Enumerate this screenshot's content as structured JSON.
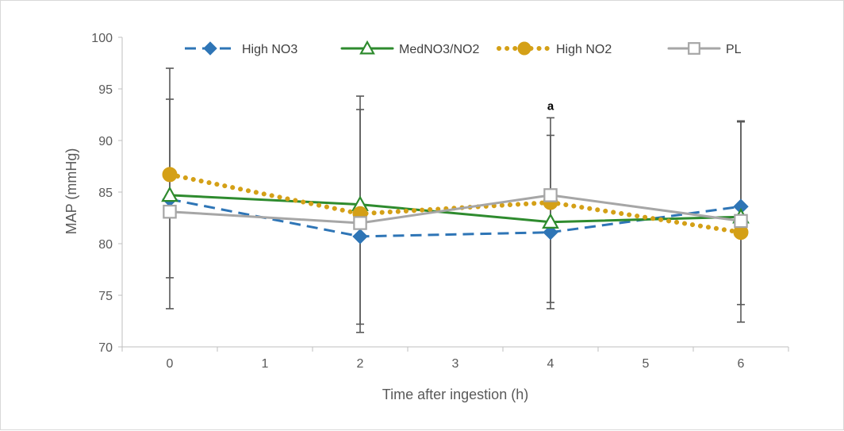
{
  "chart_data": {
    "type": "line",
    "title": "",
    "xlabel": "Time after ingestion (h)",
    "ylabel": "MAP (mmHg)",
    "xlim": [
      -0.5,
      6.5
    ],
    "ylim": [
      70,
      100
    ],
    "x_ticks": [
      "0",
      "1",
      "2",
      "3",
      "4",
      "5",
      "6"
    ],
    "y_ticks": [
      "70",
      "75",
      "80",
      "85",
      "90",
      "95",
      "100"
    ],
    "grid": false,
    "legend_position": "top",
    "series": [
      {
        "name": "High NO3",
        "color": "#2E75B6",
        "marker": "diamond",
        "line_style": "dashed",
        "x": [
          0,
          2,
          4,
          6
        ],
        "y": [
          84.3,
          80.7,
          81.1,
          83.6
        ],
        "error": [
          [
            73.7,
            94.0
          ],
          [
            72.2,
            93.0
          ],
          [
            74.3,
            90.5
          ],
          [
            74.1,
            91.9
          ]
        ]
      },
      {
        "name": "MedNO3/NO2",
        "color": "#2E8B2E",
        "marker": "triangle",
        "line_style": "solid",
        "x": [
          0,
          2,
          4,
          6
        ],
        "y": [
          84.7,
          83.8,
          82.1,
          82.6
        ],
        "error": [
          [
            76.7,
            97.0
          ],
          [
            71.4,
            94.3
          ],
          [
            73.7,
            92.2
          ],
          [
            72.4,
            91.8
          ]
        ]
      },
      {
        "name": "High NO2",
        "color": "#D4A017",
        "marker": "circle",
        "line_style": "dotted",
        "x": [
          0,
          2,
          4,
          6
        ],
        "y": [
          86.7,
          82.9,
          84.0,
          81.1
        ],
        "error": []
      },
      {
        "name": "PL",
        "color": "#A6A6A6",
        "marker": "square",
        "line_style": "solid",
        "x": [
          0,
          2,
          4,
          6
        ],
        "y": [
          83.1,
          82.0,
          84.7,
          82.2
        ],
        "error": []
      }
    ],
    "annotations": [
      {
        "text": "a",
        "x": 4,
        "y": 92.2
      }
    ]
  }
}
